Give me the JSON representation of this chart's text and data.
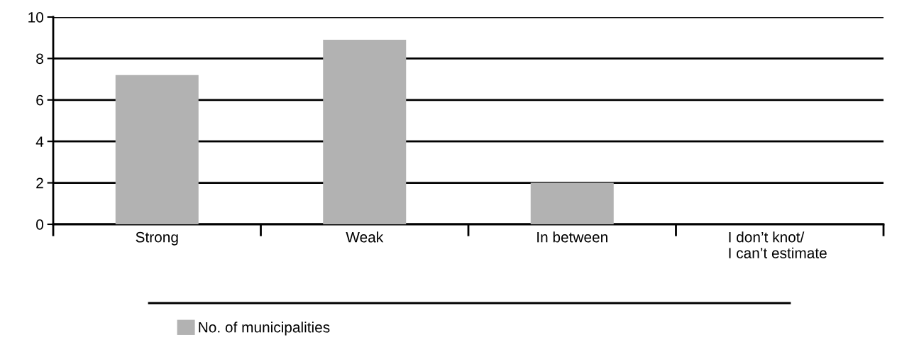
{
  "chart_data": {
    "type": "bar",
    "categories": [
      "Strong",
      "Weak",
      "In between",
      "I don’t knot/\nI can’t estimate"
    ],
    "series": [
      {
        "name": "No. of municipalities",
        "color": "#b2b2b2",
        "values": [
          7.2,
          8.9,
          2.0,
          0
        ]
      }
    ],
    "ylim": [
      0,
      10
    ],
    "yticks": [
      0,
      2,
      4,
      6,
      8,
      10
    ],
    "grid": "y",
    "legend": "bottom"
  }
}
